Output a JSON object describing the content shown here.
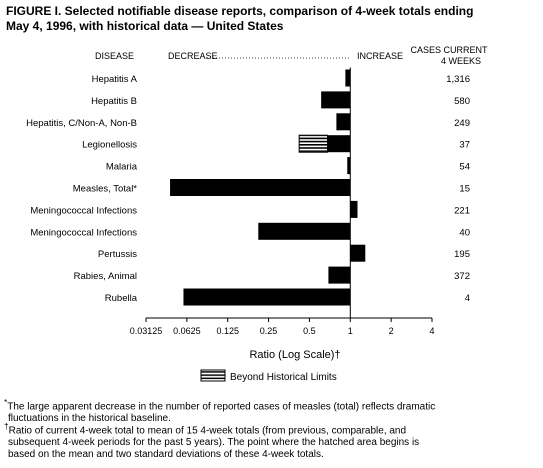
{
  "figure": {
    "title_line1": "FIGURE I. Selected notifiable disease reports, comparison of 4-week totals ending",
    "title_line2": "May 4, 1996, with historical data — United States"
  },
  "headers": {
    "disease": "DISEASE",
    "decrease": "DECREASE",
    "increase": "INCREASE",
    "cases_line1": "CASES CURRENT",
    "cases_line2": "4 WEEKS"
  },
  "legend": {
    "label": "Beyond Historical Limits"
  },
  "footnotes": {
    "star_symbol": "*",
    "star_text_line1": "The large apparent decrease in the number of reported cases of measles (total) reflects dramatic",
    "star_text_line2": "fluctuations in the historical baseline.",
    "dagger_symbol": "†",
    "dagger_text_line1": "Ratio of current 4-week total to mean of 15 4-week totals (from previous, comparable, and",
    "dagger_text_line2": "subsequent 4-week periods for the past 5 years). The point where the hatched area begins is",
    "dagger_text_line3": "based on the mean and two standard deviations of these 4-week totals."
  },
  "chart_data": {
    "type": "bar",
    "orientation": "horizontal",
    "scale": "log2",
    "xlabel": "Ratio (Log Scale)†",
    "xlim": [
      0.03125,
      4
    ],
    "baseline": 1,
    "xticks": [
      0.03125,
      0.0625,
      0.125,
      0.25,
      0.5,
      1,
      2,
      4
    ],
    "xtick_labels": [
      "0.03125",
      "0.0625",
      "0.125",
      "0.25",
      "0.5",
      "1",
      "2",
      "4"
    ],
    "categories": [
      "Hepatitis A",
      "Hepatitis B",
      "Hepatitis, C/Non-A, Non-B",
      "Legionellosis",
      "Malaria",
      "Measles, Total*",
      "Meningococcal Infections",
      "Meningococcal Infections",
      "Pertussis",
      "Rabies, Animal",
      "Rubella"
    ],
    "values": [
      0.92,
      0.61,
      0.79,
      0.42,
      0.95,
      0.047,
      1.13,
      0.21,
      1.29,
      0.69,
      0.059
    ],
    "hatched_boundary": [
      null,
      null,
      null,
      0.68,
      null,
      null,
      null,
      null,
      null,
      null,
      null
    ],
    "cases": [
      "1,316",
      "580",
      "249",
      "37",
      "54",
      "15",
      "221",
      "40",
      "195",
      "372",
      "4"
    ]
  }
}
